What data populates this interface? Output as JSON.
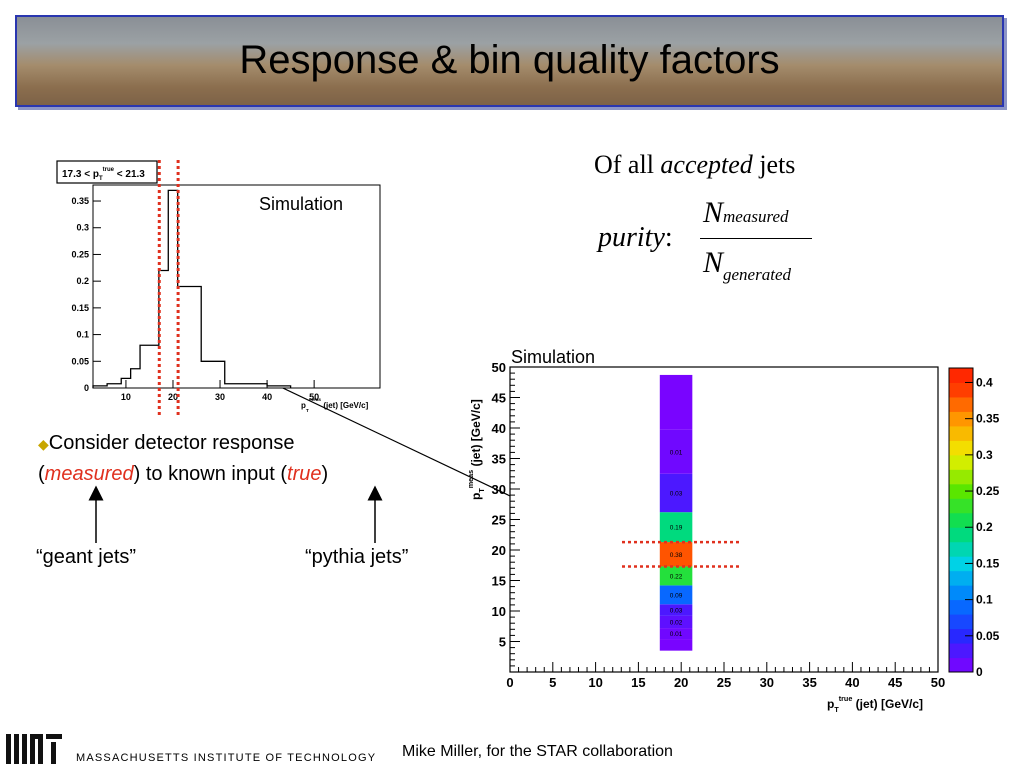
{
  "slide": {
    "title": "Response & bin quality factors",
    "accepted_prefix": "Of all",
    "accepted_word": "accepted",
    "accepted_suffix": "jets",
    "formula": {
      "lhs": "purity",
      "colon": ":",
      "numerator_N": "N",
      "numerator_sub": "measured",
      "denominator_N": "N",
      "denominator_sub": "generated"
    },
    "bullet": {
      "line1": "Consider detector response",
      "open_paren": "(",
      "measured": "measured",
      "middle": ") to known input (",
      "true": "true",
      "close_paren": ")"
    },
    "label_geant": "“geant jets”",
    "label_pythia": "“pythia jets”",
    "footer": "Mike Miller, for the STAR collaboration",
    "mit_name": "MASSACHUSETTS INSTITUTE OF TECHNOLOGY",
    "mit_logo": "MIT"
  },
  "colors": {
    "accent_red": "#e0301e",
    "banner_border": "#2a36b0",
    "bullet_diamond": "#c8a600"
  },
  "chart_data": [
    {
      "type": "histogram",
      "legend_box": {
        "prefix": "17.3 < p",
        "sub": "T",
        "sup": "true",
        "suffix": "< 21.3"
      },
      "annotation": "Simulation",
      "xlabel": {
        "p": "p",
        "sub": "T",
        "sup": "meas",
        "rest": "(jet) [GeV/c]"
      },
      "x_ticks": [
        10,
        20,
        30,
        40,
        50
      ],
      "y_ticks": [
        "0",
        "0.05",
        "0.1",
        "0.15",
        "0.2",
        "0.25",
        "0.3",
        "0.35"
      ],
      "xlim": [
        3,
        64
      ],
      "ylim": [
        0,
        0.38
      ],
      "bin_edges": [
        3,
        6,
        9,
        11,
        13,
        17,
        19,
        21,
        26,
        31,
        40,
        45
      ],
      "values": [
        0.004,
        0.008,
        0.018,
        0.036,
        0.08,
        0.22,
        0.37,
        0.19,
        0.05,
        0.008,
        0.004
      ],
      "dotted_lines_x": [
        17.3,
        21.3
      ]
    },
    {
      "type": "heatmap",
      "annotation": "Simulation",
      "xlabel": {
        "p": "p",
        "sub": "T",
        "sup": "true",
        "rest": "(jet) [GeV/c]"
      },
      "ylabel": {
        "p": "p",
        "sub": "T",
        "sup": "meas",
        "rest": "(jet) [GeV/c]"
      },
      "x_ticks": [
        0,
        5,
        10,
        15,
        20,
        25,
        30,
        35,
        40,
        45,
        50
      ],
      "y_ticks": [
        5,
        10,
        15,
        20,
        25,
        30,
        35,
        40,
        45,
        50
      ],
      "xlim": [
        0,
        50
      ],
      "ylim": [
        0,
        50
      ],
      "column_x": [
        17.5,
        21.3
      ],
      "cells": [
        {
          "y0": 3.5,
          "y1": 5.4,
          "value": 0.005,
          "label": ""
        },
        {
          "y0": 5.4,
          "y1": 7.2,
          "value": 0.01,
          "label": "0.01"
        },
        {
          "y0": 7.2,
          "y1": 9.2,
          "value": 0.02,
          "label": "0.02"
        },
        {
          "y0": 9.2,
          "y1": 11.1,
          "value": 0.03,
          "label": "0.03"
        },
        {
          "y0": 11.1,
          "y1": 14.2,
          "value": 0.09,
          "label": "0.09"
        },
        {
          "y0": 14.2,
          "y1": 17.3,
          "value": 0.22,
          "label": "0.22"
        },
        {
          "y0": 17.3,
          "y1": 21.3,
          "value": 0.38,
          "label": "0.38"
        },
        {
          "y0": 21.3,
          "y1": 26.2,
          "value": 0.19,
          "label": "0.19"
        },
        {
          "y0": 26.2,
          "y1": 32.5,
          "value": 0.03,
          "label": "0.03"
        },
        {
          "y0": 32.5,
          "y1": 39.7,
          "value": 0.01,
          "label": "0.01"
        },
        {
          "y0": 39.7,
          "y1": 48.7,
          "value": 0.005,
          "label": ""
        }
      ],
      "dotted_lines_y": [
        17.3,
        21.3
      ],
      "colorbar": {
        "ticks": [
          0,
          0.05,
          0.1,
          0.15,
          0.2,
          0.25,
          0.3,
          0.35,
          0.4
        ],
        "max": 0.42
      }
    }
  ]
}
